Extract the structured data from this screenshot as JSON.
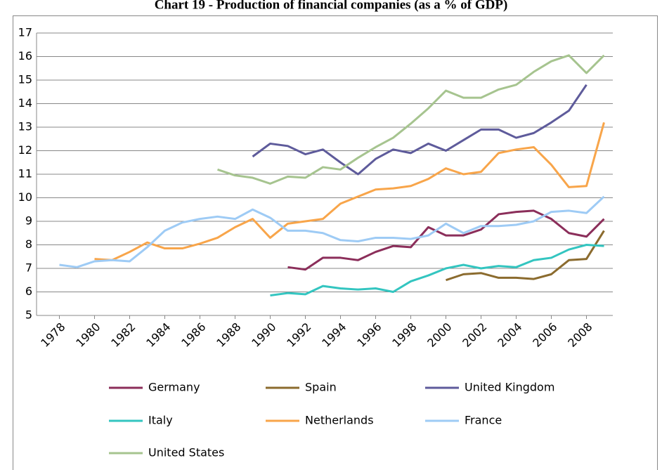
{
  "chart_data": {
    "type": "line",
    "title": "Chart 19 - Production of financial companies (as a % of GDP)",
    "x": [
      1978,
      1979,
      1980,
      1981,
      1982,
      1983,
      1984,
      1985,
      1986,
      1987,
      1988,
      1989,
      1990,
      1991,
      1992,
      1993,
      1994,
      1995,
      1996,
      1997,
      1998,
      1999,
      2000,
      2001,
      2002,
      2003,
      2004,
      2005,
      2006,
      2007,
      2008,
      2009
    ],
    "xlim": [
      1977.5,
      2009.5
    ],
    "xticks": [
      1978,
      1980,
      1982,
      1984,
      1986,
      1988,
      1990,
      1992,
      1994,
      1996,
      1998,
      2000,
      2002,
      2004,
      2006,
      2008
    ],
    "ylim": [
      5,
      17
    ],
    "yticks": [
      5,
      6,
      7,
      8,
      9,
      10,
      11,
      12,
      13,
      14,
      15,
      16,
      17
    ],
    "grid": true,
    "legend": "bottom",
    "series": [
      {
        "name": "Germany",
        "color": "#8b2e5a",
        "values": [
          null,
          null,
          null,
          null,
          null,
          null,
          null,
          null,
          null,
          null,
          null,
          null,
          null,
          7.05,
          6.95,
          7.45,
          7.45,
          7.35,
          7.7,
          7.95,
          7.9,
          8.75,
          8.4,
          8.4,
          8.65,
          9.3,
          9.4,
          9.45,
          9.1,
          8.5,
          8.35,
          9.1
        ]
      },
      {
        "name": "Spain",
        "color": "#8b6b2e",
        "values": [
          null,
          null,
          null,
          null,
          null,
          null,
          null,
          null,
          null,
          null,
          null,
          null,
          null,
          null,
          null,
          null,
          null,
          null,
          null,
          null,
          null,
          null,
          6.5,
          6.75,
          6.8,
          6.6,
          6.6,
          6.55,
          6.75,
          7.35,
          7.4,
          8.6
        ]
      },
      {
        "name": "United Kingdom",
        "color": "#5e5b9b",
        "values": [
          null,
          null,
          null,
          null,
          null,
          null,
          null,
          null,
          null,
          null,
          null,
          11.75,
          12.3,
          12.2,
          11.85,
          12.05,
          11.5,
          11.0,
          11.65,
          12.05,
          11.9,
          12.3,
          12.0,
          12.45,
          12.9,
          12.9,
          12.55,
          12.75,
          13.2,
          13.7,
          14.8,
          null
        ]
      },
      {
        "name": "Italy",
        "color": "#33c5c0",
        "values": [
          null,
          null,
          null,
          null,
          null,
          null,
          null,
          null,
          null,
          null,
          null,
          null,
          5.85,
          5.95,
          5.9,
          6.25,
          6.15,
          6.1,
          6.15,
          6.0,
          6.45,
          6.7,
          7.0,
          7.15,
          7.0,
          7.1,
          7.05,
          7.35,
          7.45,
          7.8,
          8.0,
          7.95
        ]
      },
      {
        "name": "Netherlands",
        "color": "#f8a54a",
        "values": [
          null,
          null,
          7.4,
          7.35,
          7.7,
          8.1,
          7.85,
          7.85,
          8.05,
          8.3,
          8.75,
          9.1,
          8.3,
          8.9,
          9.0,
          9.1,
          9.75,
          10.05,
          10.35,
          10.4,
          10.5,
          10.8,
          11.25,
          11.0,
          11.1,
          11.9,
          12.05,
          12.15,
          11.4,
          10.45,
          10.5,
          13.2
        ]
      },
      {
        "name": "France",
        "color": "#9ecbf5",
        "values": [
          7.15,
          7.05,
          7.3,
          7.35,
          7.3,
          7.9,
          8.6,
          8.95,
          9.1,
          9.2,
          9.1,
          9.5,
          9.15,
          8.6,
          8.6,
          8.5,
          8.2,
          8.15,
          8.3,
          8.3,
          8.25,
          8.4,
          8.9,
          8.5,
          8.8,
          8.8,
          8.85,
          9.0,
          9.4,
          9.45,
          9.35,
          10.05
        ]
      },
      {
        "name": "United States",
        "color": "#a6c48f",
        "values": [
          null,
          null,
          null,
          null,
          null,
          null,
          null,
          null,
          null,
          11.2,
          10.95,
          10.85,
          10.6,
          10.9,
          10.85,
          11.3,
          11.2,
          11.7,
          12.15,
          12.55,
          13.15,
          13.8,
          14.55,
          14.25,
          14.25,
          14.6,
          14.8,
          15.35,
          15.8,
          16.05,
          15.3,
          16.05
        ]
      }
    ]
  }
}
